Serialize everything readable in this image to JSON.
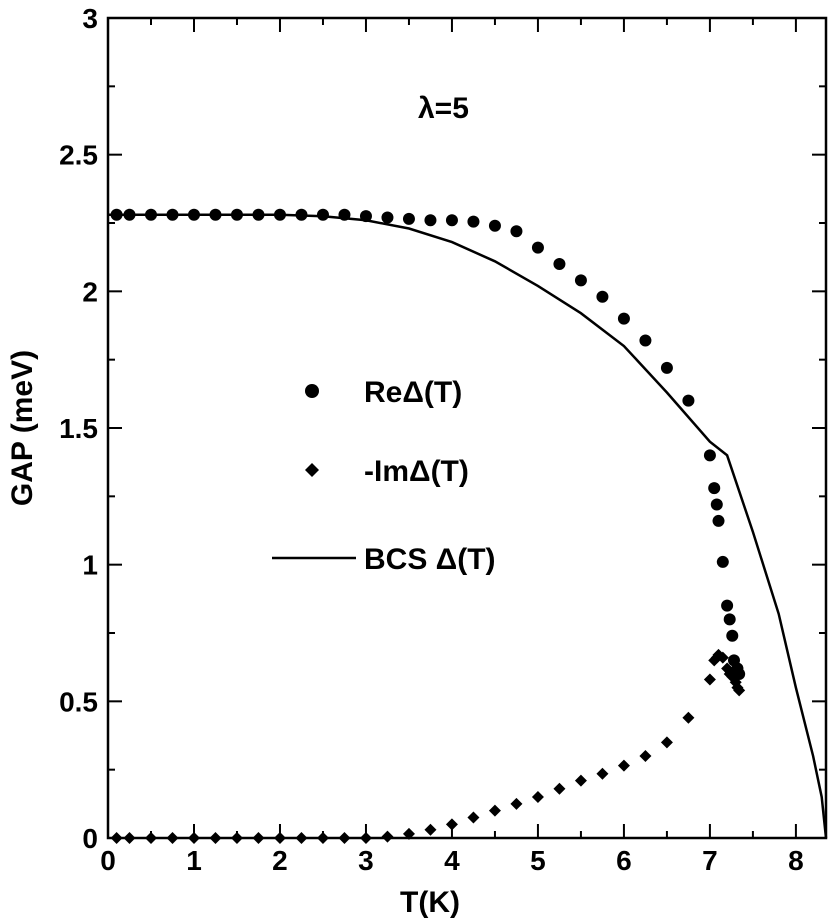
{
  "chart_data": {
    "type": "scatter",
    "annotation": "λ=5",
    "xlabel": "T(K)",
    "ylabel": "GAP (meV)",
    "xlim": [
      0,
      8.35
    ],
    "ylim": [
      0,
      3
    ],
    "x_ticks": [
      0,
      1,
      2,
      3,
      4,
      5,
      6,
      7,
      8
    ],
    "x_minor_step": 0.5,
    "y_ticks": [
      0,
      0.5,
      1,
      1.5,
      2,
      2.5,
      3
    ],
    "y_tick_labels": [
      "0",
      "0.5",
      "1",
      "1.5",
      "2",
      "2.5",
      "3"
    ],
    "y_minor_step": 0.25,
    "grid": false,
    "legend_position": "center-left",
    "series": [
      {
        "name": "ReΔ(T)",
        "marker": "circle",
        "x": [
          0.1,
          0.25,
          0.5,
          0.75,
          1.0,
          1.25,
          1.5,
          1.75,
          2.0,
          2.25,
          2.5,
          2.75,
          3.0,
          3.25,
          3.5,
          3.75,
          4.0,
          4.25,
          4.5,
          4.75,
          5.0,
          5.25,
          5.5,
          5.75,
          6.0,
          6.25,
          6.5,
          6.75,
          7.0,
          7.05,
          7.08,
          7.1,
          7.15,
          7.2,
          7.23,
          7.26,
          7.28,
          7.3,
          7.32,
          7.34
        ],
        "y": [
          2.28,
          2.28,
          2.28,
          2.28,
          2.28,
          2.28,
          2.28,
          2.28,
          2.28,
          2.28,
          2.28,
          2.28,
          2.275,
          2.27,
          2.265,
          2.26,
          2.26,
          2.255,
          2.24,
          2.22,
          2.16,
          2.1,
          2.04,
          1.98,
          1.9,
          1.82,
          1.72,
          1.6,
          1.4,
          1.28,
          1.22,
          1.16,
          1.01,
          0.85,
          0.8,
          0.74,
          0.65,
          0.61,
          0.62,
          0.6
        ]
      },
      {
        "name": "-ImΔ(T)",
        "marker": "diamond",
        "x": [
          0.1,
          0.25,
          0.5,
          0.75,
          1.0,
          1.25,
          1.5,
          1.75,
          2.0,
          2.25,
          2.5,
          2.75,
          3.0,
          3.25,
          3.5,
          3.75,
          4.0,
          4.25,
          4.5,
          4.75,
          5.0,
          5.25,
          5.5,
          5.75,
          6.0,
          6.25,
          6.5,
          6.75,
          7.0,
          7.05,
          7.08,
          7.1,
          7.15,
          7.2,
          7.23,
          7.26,
          7.3,
          7.32,
          7.34
        ],
        "y": [
          0.0,
          0.0,
          0.0,
          0.0,
          0.0,
          0.0,
          0.0,
          0.0,
          0.0,
          0.0,
          0.0,
          0.0,
          0.0,
          0.005,
          0.015,
          0.03,
          0.05,
          0.075,
          0.1,
          0.125,
          0.15,
          0.18,
          0.21,
          0.235,
          0.265,
          0.3,
          0.35,
          0.44,
          0.58,
          0.65,
          0.66,
          0.67,
          0.66,
          0.62,
          0.6,
          0.59,
          0.57,
          0.55,
          0.54
        ]
      },
      {
        "name": "BCS Δ(T)",
        "marker": "line",
        "x": [
          0,
          1.0,
          2.0,
          2.5,
          3.0,
          3.5,
          4.0,
          4.5,
          5.0,
          5.5,
          6.0,
          6.5,
          7.0,
          7.2,
          7.5,
          7.8,
          8.0,
          8.2,
          8.3,
          8.35
        ],
        "y": [
          2.28,
          2.28,
          2.28,
          2.275,
          2.26,
          2.23,
          2.18,
          2.11,
          2.02,
          1.92,
          1.8,
          1.63,
          1.45,
          1.4,
          1.12,
          0.82,
          0.55,
          0.3,
          0.15,
          0.0
        ]
      }
    ]
  }
}
